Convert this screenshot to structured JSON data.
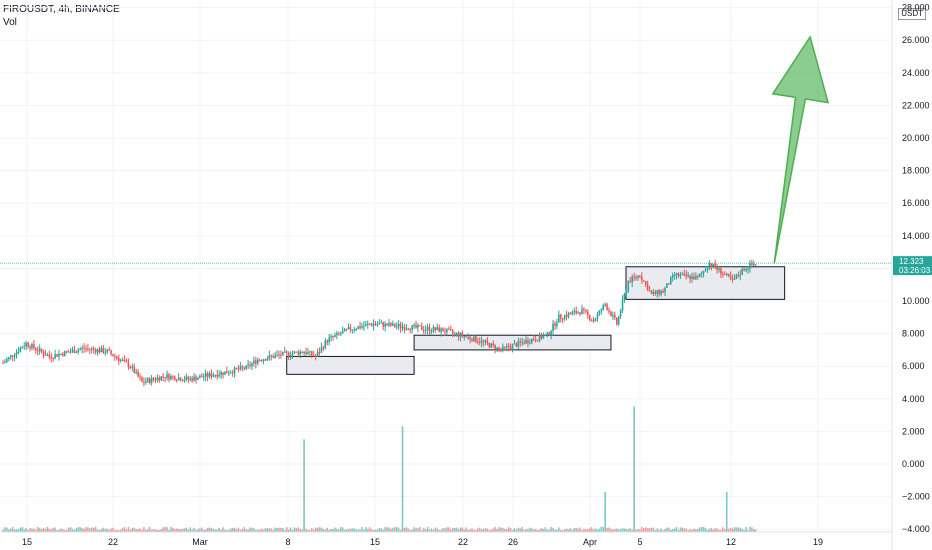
{
  "header": {
    "symbol_line": "FIROUSDT, 4h, BINANCE",
    "volume_label": "Vol"
  },
  "price_axis": {
    "unit": "USDT"
  },
  "last_price": {
    "value": "12.323",
    "countdown": "03:26:03"
  },
  "colors": {
    "up": "#26a69a",
    "down": "#ef5350",
    "arrow": "#66bb6a",
    "zone_fill": "#e0e3eb",
    "price_line": "#26a69a"
  },
  "chart_data": {
    "type": "candlestick",
    "title": "",
    "ylabel": "",
    "ylim": [
      -4.2,
      28.8
    ],
    "y_ticks": [
      28,
      26,
      24,
      22,
      20,
      18,
      16,
      14,
      12,
      10,
      8,
      6,
      4,
      2,
      0,
      -2,
      -4
    ],
    "y_tick_labels": [
      "28.000",
      "26.000",
      "24.000",
      "22.000",
      "20.000",
      "18.000",
      "16.000",
      "14.000",
      "12.000",
      "10.000",
      "8.000",
      "6.000",
      "4.000",
      "2.000",
      "0.000",
      "−2.000",
      "−4.000"
    ],
    "x_ticks": [
      "15",
      "22",
      "Mar",
      "8",
      "15",
      "22",
      "26",
      "Apr",
      "5",
      "12",
      "19"
    ],
    "price_path": [
      {
        "day": 0,
        "price": 6.2
      },
      {
        "day": 2,
        "price": 7.4
      },
      {
        "day": 4,
        "price": 6.6
      },
      {
        "day": 7,
        "price": 7.1
      },
      {
        "day": 9,
        "price": 6.9
      },
      {
        "day": 11,
        "price": 6.0
      },
      {
        "day": 12,
        "price": 5.0
      },
      {
        "day": 14,
        "price": 5.4
      },
      {
        "day": 16,
        "price": 5.2
      },
      {
        "day": 19,
        "price": 5.6
      },
      {
        "day": 21,
        "price": 5.9
      },
      {
        "day": 22,
        "price": 6.4
      },
      {
        "day": 24,
        "price": 6.7
      },
      {
        "day": 26,
        "price": 6.9
      },
      {
        "day": 27,
        "price": 6.6
      },
      {
        "day": 28,
        "price": 7.6
      },
      {
        "day": 30,
        "price": 8.3
      },
      {
        "day": 32,
        "price": 8.6
      },
      {
        "day": 35,
        "price": 8.4
      },
      {
        "day": 38,
        "price": 8.2
      },
      {
        "day": 41,
        "price": 7.6
      },
      {
        "day": 43,
        "price": 7.0
      },
      {
        "day": 45,
        "price": 7.5
      },
      {
        "day": 47,
        "price": 7.9
      },
      {
        "day": 48,
        "price": 9.0
      },
      {
        "day": 50,
        "price": 9.4
      },
      {
        "day": 51,
        "price": 8.8
      },
      {
        "day": 52,
        "price": 9.8
      },
      {
        "day": 53,
        "price": 8.6
      },
      {
        "day": 54,
        "price": 11.2
      },
      {
        "day": 55,
        "price": 11.6
      },
      {
        "day": 56,
        "price": 10.4
      },
      {
        "day": 57,
        "price": 10.6
      },
      {
        "day": 58,
        "price": 11.6
      },
      {
        "day": 60,
        "price": 11.4
      },
      {
        "day": 61,
        "price": 12.3
      },
      {
        "day": 62,
        "price": 11.8
      },
      {
        "day": 63,
        "price": 11.2
      },
      {
        "day": 64,
        "price": 12.0
      },
      {
        "day": 65,
        "price": 12.3
      }
    ],
    "consolidation_zones": [
      {
        "day_start": 24.5,
        "day_end": 35.5,
        "price_low": 5.5,
        "price_high": 6.6
      },
      {
        "day_start": 35.5,
        "day_end": 52.5,
        "price_low": 7.0,
        "price_high": 7.9
      },
      {
        "day_start": 53.8,
        "day_end": 67.5,
        "price_low": 10.1,
        "price_high": 12.1
      }
    ],
    "volume_spikes": [
      {
        "day": 26,
        "volume": 0.28
      },
      {
        "day": 34.5,
        "volume": 0.32
      },
      {
        "day": 52,
        "volume": 0.12
      },
      {
        "day": 54.5,
        "volume": 0.38
      },
      {
        "day": 62.5,
        "volume": 0.12
      }
    ],
    "forecast_arrow": {
      "from": {
        "day": 66.6,
        "price": 12.3
      },
      "to": {
        "day": 69.7,
        "price": 26.2
      }
    }
  }
}
